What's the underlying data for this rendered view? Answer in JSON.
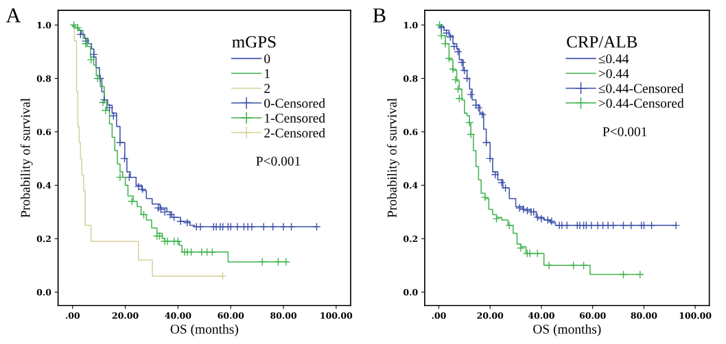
{
  "chart_data": [
    {
      "type": "step",
      "title": "A",
      "xlabel": "OS (months)",
      "ylabel": "Probability of survival",
      "legend_title": "mGPS",
      "legend": "top right",
      "grid": false,
      "xlim": [
        -5.5,
        105.5
      ],
      "ylim": [
        -0.05,
        1.055
      ],
      "xticks": [
        {
          "value": 0,
          "label": ".00"
        },
        {
          "value": 20,
          "label": "20.00"
        },
        {
          "value": 40,
          "label": "40.00"
        },
        {
          "value": 60,
          "label": "60.00"
        },
        {
          "value": 80,
          "label": "80.00"
        },
        {
          "value": 100,
          "label": "100.00"
        }
      ],
      "yticks": [
        {
          "value": 0,
          "label": "0.0"
        },
        {
          "value": 0.2,
          "label": "0.2"
        },
        {
          "value": 0.4,
          "label": "0.4"
        },
        {
          "value": 0.6,
          "label": "0.6"
        },
        {
          "value": 0.8,
          "label": "0.8"
        },
        {
          "value": 1.0,
          "label": "1.0"
        }
      ],
      "annotations": [
        "P<0.001"
      ],
      "series": [
        {
          "name": "0",
          "color": "#3b4fa8",
          "x": [
            0,
            0.7,
            2,
            3.3,
            4.6,
            5.9,
            7.2,
            8.1,
            8.9,
            10.2,
            11.1,
            12,
            13.3,
            15,
            16.7,
            18,
            19.8,
            20.6,
            21.9,
            24.1,
            26.3,
            28,
            30.2,
            33.2,
            35.8,
            37.6,
            41,
            44.5,
            46.2,
            92.6
          ],
          "values": [
            0.995,
            0.99,
            0.98,
            0.965,
            0.95,
            0.93,
            0.91,
            0.88,
            0.84,
            0.8,
            0.75,
            0.72,
            0.7,
            0.67,
            0.62,
            0.56,
            0.5,
            0.45,
            0.43,
            0.4,
            0.38,
            0.35,
            0.33,
            0.315,
            0.3,
            0.28,
            0.265,
            0.25,
            0.245,
            0.245
          ]
        },
        {
          "name": "1",
          "color": "#3db34a",
          "x": [
            0,
            1,
            2.5,
            4,
            5.5,
            6.8,
            8,
            9,
            10.5,
            12,
            13,
            14,
            15,
            16,
            17,
            18,
            19,
            20,
            21,
            23,
            24.5,
            26,
            28,
            30,
            32,
            34,
            35,
            40.5,
            41.5,
            59,
            81
          ],
          "values": [
            1.0,
            0.99,
            0.98,
            0.95,
            0.92,
            0.88,
            0.85,
            0.81,
            0.77,
            0.72,
            0.68,
            0.63,
            0.58,
            0.53,
            0.48,
            0.45,
            0.43,
            0.4,
            0.36,
            0.34,
            0.32,
            0.29,
            0.27,
            0.24,
            0.22,
            0.2,
            0.19,
            0.175,
            0.15,
            0.113,
            0.113
          ]
        },
        {
          "name": "2",
          "color": "#d6d09c",
          "x": [
            0,
            0.7,
            1.5,
            2,
            2.5,
            3,
            3.5,
            4.2,
            4.8,
            7,
            25,
            30.3,
            57
          ],
          "values": [
            1.0,
            0.94,
            0.75,
            0.62,
            0.56,
            0.5,
            0.44,
            0.38,
            0.25,
            0.19,
            0.12,
            0.06,
            0.06
          ]
        },
        {
          "name": "0-Censored",
          "type": "scatter",
          "marker": "cross",
          "color": "#3b4fa8",
          "x": [
            3,
            5,
            8,
            10.5,
            12,
            14,
            15.5,
            18,
            19.7,
            21.5,
            25,
            26.5,
            32.5,
            33.5,
            35,
            37,
            38.5,
            41,
            43.5,
            47,
            48.5,
            53.5,
            54.5,
            56,
            57,
            59,
            60,
            62.5,
            65,
            66.5,
            68,
            72.5,
            76,
            80,
            83,
            92.6
          ],
          "values": [
            0.965,
            0.94,
            0.89,
            0.8,
            0.72,
            0.69,
            0.66,
            0.56,
            0.5,
            0.43,
            0.395,
            0.385,
            0.315,
            0.31,
            0.3,
            0.29,
            0.28,
            0.265,
            0.26,
            0.245,
            0.245,
            0.245,
            0.245,
            0.245,
            0.245,
            0.245,
            0.245,
            0.245,
            0.245,
            0.245,
            0.245,
            0.245,
            0.245,
            0.245,
            0.245,
            0.245
          ]
        },
        {
          "name": "1-Censored",
          "type": "scatter",
          "marker": "cross",
          "color": "#3db34a",
          "x": [
            0.5,
            2,
            5,
            7,
            9.5,
            11.5,
            12.5,
            18,
            22.5,
            27,
            32,
            33,
            35,
            36,
            38.5,
            40,
            42.5,
            43.5,
            45,
            49,
            51,
            53,
            72,
            78,
            81
          ],
          "values": [
            1.0,
            0.99,
            0.93,
            0.87,
            0.8,
            0.71,
            0.68,
            0.43,
            0.34,
            0.29,
            0.21,
            0.21,
            0.19,
            0.19,
            0.19,
            0.19,
            0.15,
            0.15,
            0.15,
            0.15,
            0.15,
            0.15,
            0.113,
            0.113,
            0.113
          ]
        },
        {
          "name": "2-Censored",
          "type": "scatter",
          "marker": "cross",
          "color": "#d6d09c",
          "x": [
            57
          ],
          "values": [
            0.06
          ]
        }
      ]
    },
    {
      "type": "step",
      "title": "B",
      "xlabel": "OS (months)",
      "ylabel": "Probability of survival",
      "legend_title": "CRP/ALB",
      "legend": "top right",
      "grid": false,
      "xlim": [
        -5.5,
        105.5
      ],
      "ylim": [
        -0.05,
        1.055
      ],
      "xticks": [
        {
          "value": 0,
          "label": ".00"
        },
        {
          "value": 20,
          "label": "20.00"
        },
        {
          "value": 40,
          "label": "40.00"
        },
        {
          "value": 60,
          "label": "60.00"
        },
        {
          "value": 80,
          "label": "80.00"
        },
        {
          "value": 100,
          "label": "100.00"
        }
      ],
      "yticks": [
        {
          "value": 0,
          "label": "0.0"
        },
        {
          "value": 0.2,
          "label": "0.2"
        },
        {
          "value": 0.4,
          "label": "0.4"
        },
        {
          "value": 0.6,
          "label": "0.6"
        },
        {
          "value": 0.8,
          "label": "0.8"
        },
        {
          "value": 1.0,
          "label": "1.0"
        }
      ],
      "annotations": [
        "P<0.001"
      ],
      "series": [
        {
          "name": "≤0.44",
          "color": "#3b4fa8",
          "x": [
            0,
            2,
            4,
            5.5,
            7,
            8,
            9.5,
            11,
            12,
            13,
            14.5,
            16,
            17.5,
            18.5,
            20,
            21,
            23,
            25,
            27.5,
            30,
            33,
            36,
            38,
            41,
            43.5,
            45.5,
            92.5
          ],
          "values": [
            0.995,
            0.98,
            0.96,
            0.93,
            0.91,
            0.87,
            0.83,
            0.8,
            0.76,
            0.72,
            0.7,
            0.67,
            0.61,
            0.56,
            0.5,
            0.45,
            0.42,
            0.39,
            0.35,
            0.32,
            0.31,
            0.3,
            0.28,
            0.27,
            0.26,
            0.25,
            0.25
          ]
        },
        {
          "name": ">0.44",
          "color": "#3db34a",
          "x": [
            0,
            1,
            2.5,
            4,
            5.5,
            7,
            8,
            9,
            10,
            11,
            12,
            12.5,
            13.5,
            14.5,
            15.5,
            16.5,
            18,
            19.5,
            21,
            22.5,
            24.5,
            27,
            29,
            30.5,
            32,
            34,
            41,
            59,
            78.5
          ],
          "values": [
            1.0,
            0.96,
            0.93,
            0.87,
            0.83,
            0.79,
            0.76,
            0.72,
            0.67,
            0.66,
            0.63,
            0.59,
            0.53,
            0.47,
            0.42,
            0.37,
            0.35,
            0.31,
            0.29,
            0.28,
            0.27,
            0.25,
            0.22,
            0.18,
            0.17,
            0.145,
            0.1,
            0.066,
            0.066
          ]
        },
        {
          "name": "≤0.44-Censored",
          "type": "scatter",
          "marker": "cross",
          "color": "#3b4fa8",
          "x": [
            1,
            3,
            4.5,
            6,
            7.5,
            9,
            10,
            11,
            12.5,
            14.5,
            15.5,
            17,
            18.5,
            20,
            22,
            24.5,
            26,
            31.5,
            33,
            34.5,
            36,
            37,
            38.5,
            40,
            42.5,
            44,
            47,
            48,
            50,
            54,
            55,
            56.5,
            57.5,
            59.5,
            62,
            64,
            66,
            68,
            72,
            75,
            79,
            80,
            83,
            92.5
          ],
          "values": [
            0.99,
            0.97,
            0.955,
            0.92,
            0.9,
            0.86,
            0.83,
            0.8,
            0.74,
            0.7,
            0.69,
            0.665,
            0.56,
            0.5,
            0.44,
            0.41,
            0.39,
            0.315,
            0.31,
            0.305,
            0.3,
            0.3,
            0.28,
            0.275,
            0.27,
            0.265,
            0.25,
            0.25,
            0.25,
            0.25,
            0.25,
            0.25,
            0.25,
            0.25,
            0.25,
            0.25,
            0.25,
            0.25,
            0.25,
            0.25,
            0.25,
            0.25,
            0.25,
            0.25
          ]
        },
        {
          "name": ">0.44-Censored",
          "type": "scatter",
          "marker": "cross",
          "color": "#3db34a",
          "x": [
            0.3,
            1,
            2.5,
            4,
            5.5,
            6.5,
            7.5,
            8,
            12,
            12.5,
            18,
            22.5,
            27.5,
            32,
            34.5,
            35.5,
            38.5,
            43,
            52.5,
            56.5,
            72,
            78.5
          ],
          "values": [
            1.0,
            0.96,
            0.93,
            0.875,
            0.835,
            0.795,
            0.76,
            0.725,
            0.635,
            0.59,
            0.355,
            0.275,
            0.25,
            0.165,
            0.145,
            0.145,
            0.145,
            0.1,
            0.1,
            0.1,
            0.066,
            0.066
          ]
        }
      ]
    }
  ]
}
